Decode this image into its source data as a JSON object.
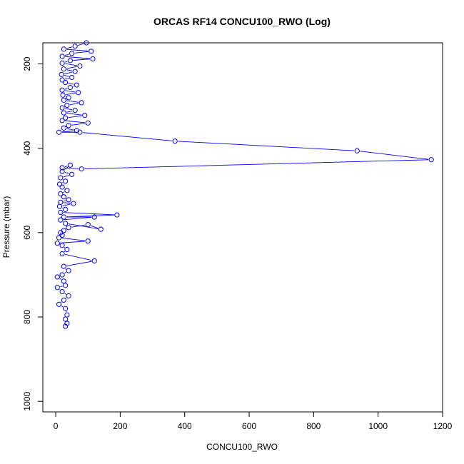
{
  "chart_data": {
    "type": "scatter",
    "title": "ORCAS RF14 CONCU100_RWO (Log)",
    "xlabel": "CONCU100_RWO",
    "ylabel": "Pressure (mbar)",
    "xlim": [
      -40,
      1200
    ],
    "ylim": [
      1025,
      150
    ],
    "y_inverted": true,
    "x_ticks": [
      0,
      200,
      400,
      600,
      800,
      1000,
      1200
    ],
    "y_ticks": [
      200,
      400,
      600,
      800,
      1000
    ],
    "color": "#0000ff",
    "markers": "open-circle",
    "connected": true,
    "grid": false,
    "series": [
      {
        "points": [
          [
            95,
            150
          ],
          [
            60,
            158
          ],
          [
            25,
            165
          ],
          [
            110,
            170
          ],
          [
            50,
            175
          ],
          [
            20,
            182
          ],
          [
            115,
            188
          ],
          [
            45,
            192
          ],
          [
            20,
            198
          ],
          [
            75,
            205
          ],
          [
            25,
            212
          ],
          [
            60,
            218
          ],
          [
            18,
            225
          ],
          [
            50,
            232
          ],
          [
            20,
            238
          ],
          [
            30,
            244
          ],
          [
            65,
            250
          ],
          [
            45,
            256
          ],
          [
            20,
            262
          ],
          [
            70,
            268
          ],
          [
            22,
            274
          ],
          [
            40,
            280
          ],
          [
            25,
            286
          ],
          [
            80,
            292
          ],
          [
            35,
            298
          ],
          [
            20,
            304
          ],
          [
            60,
            310
          ],
          [
            25,
            316
          ],
          [
            90,
            322
          ],
          [
            30,
            328
          ],
          [
            20,
            334
          ],
          [
            100,
            340
          ],
          [
            40,
            346
          ],
          [
            25,
            352
          ],
          [
            65,
            358
          ],
          [
            10,
            362
          ],
          [
            75,
            362
          ],
          [
            370,
            383
          ],
          [
            935,
            406
          ],
          [
            1165,
            427
          ],
          [
            80,
            449
          ],
          [
            20,
            446
          ],
          [
            45,
            440
          ],
          [
            20,
            455
          ],
          [
            50,
            462
          ],
          [
            15,
            470
          ],
          [
            30,
            478
          ],
          [
            12,
            485
          ],
          [
            20,
            492
          ],
          [
            35,
            500
          ],
          [
            15,
            508
          ],
          [
            25,
            515
          ],
          [
            40,
            522
          ],
          [
            15,
            528
          ],
          [
            55,
            531
          ],
          [
            12,
            538
          ],
          [
            30,
            545
          ],
          [
            15,
            552
          ],
          [
            190,
            558
          ],
          [
            25,
            563
          ],
          [
            120,
            563
          ],
          [
            15,
            570
          ],
          [
            30,
            578
          ],
          [
            140,
            592
          ],
          [
            100,
            581
          ],
          [
            40,
            588
          ],
          [
            25,
            595
          ],
          [
            15,
            600
          ],
          [
            20,
            606
          ],
          [
            10,
            612
          ],
          [
            100,
            620
          ],
          [
            5,
            625
          ],
          [
            20,
            630
          ],
          [
            35,
            640
          ],
          [
            20,
            650
          ],
          [
            120,
            667
          ],
          [
            25,
            680
          ],
          [
            40,
            690
          ],
          [
            20,
            700
          ],
          [
            5,
            705
          ],
          [
            25,
            715
          ],
          [
            30,
            725
          ],
          [
            5,
            730
          ],
          [
            20,
            740
          ],
          [
            40,
            750
          ],
          [
            25,
            760
          ],
          [
            10,
            770
          ],
          [
            30,
            780
          ],
          [
            35,
            795
          ],
          [
            30,
            805
          ],
          [
            35,
            815
          ],
          [
            30,
            822
          ]
        ]
      }
    ]
  }
}
